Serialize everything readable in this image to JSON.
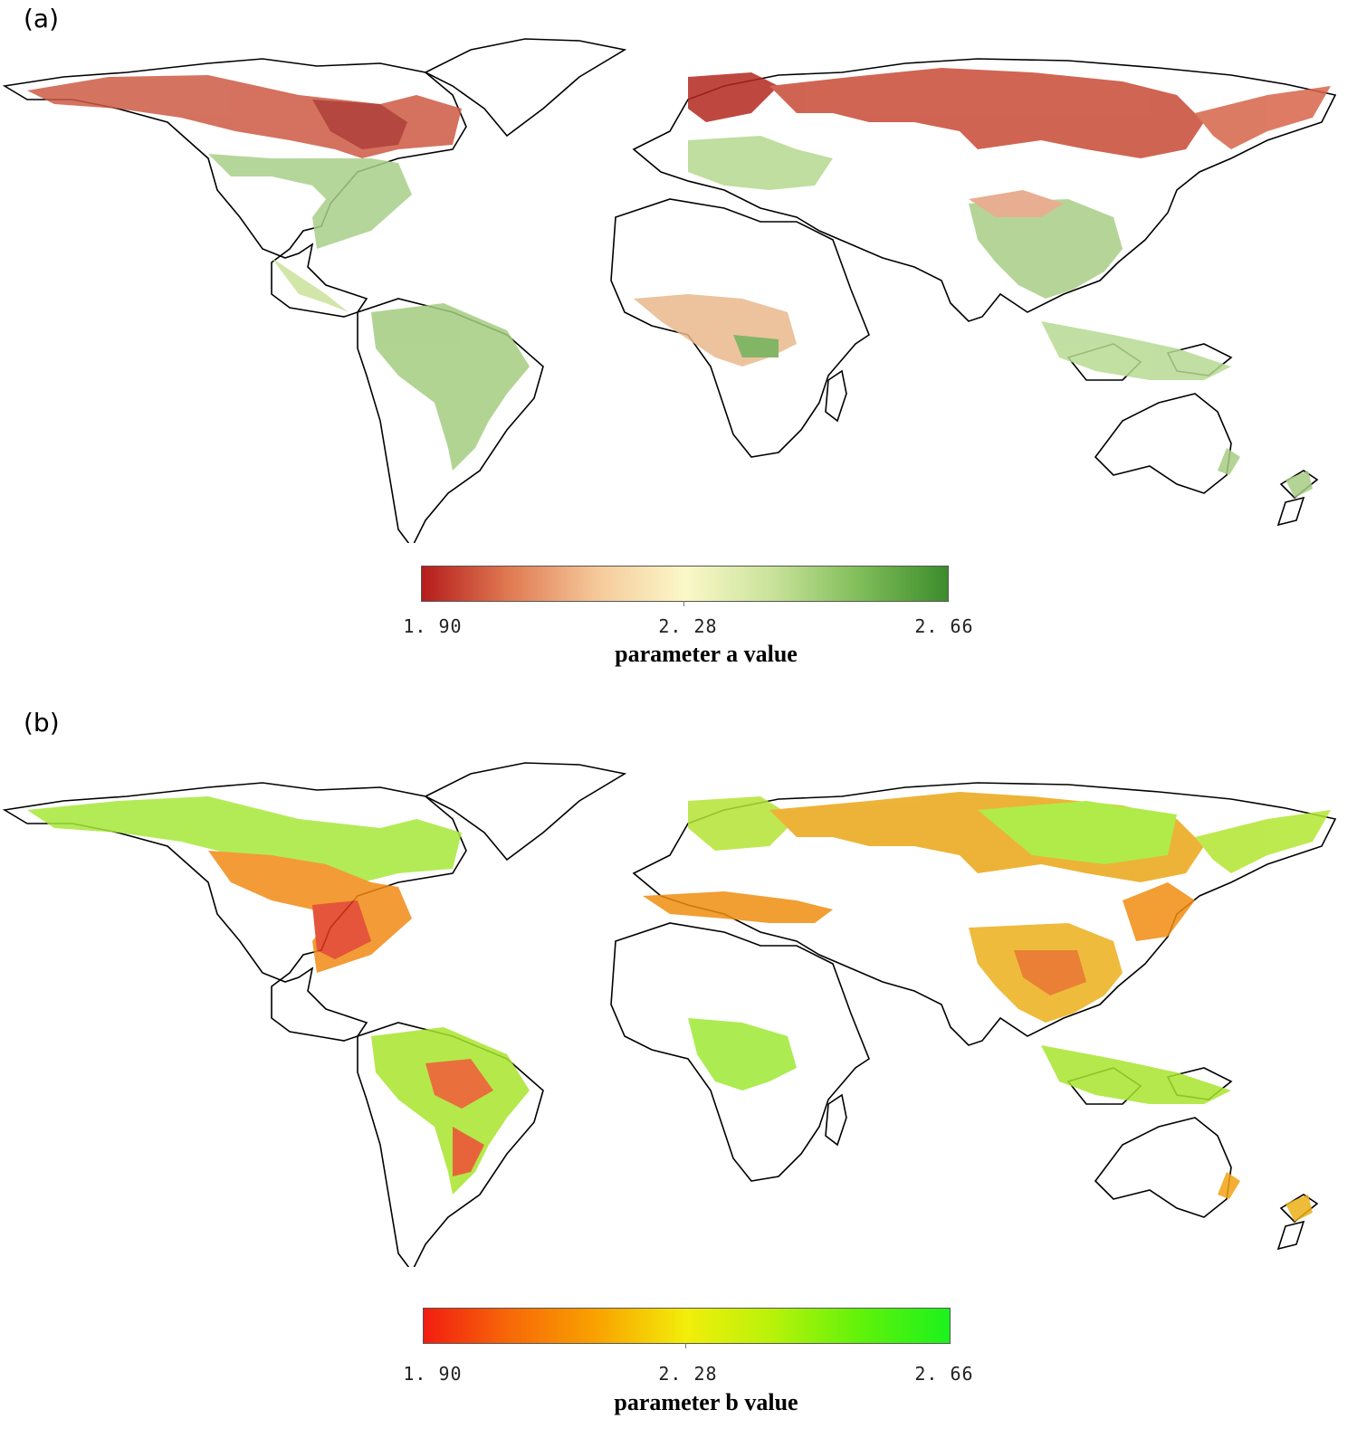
{
  "panels": [
    {
      "id": "a",
      "label": "(a)",
      "colorbar": {
        "ticks": [
          "1. 90",
          "2. 28",
          "2. 66"
        ],
        "title": "parameter a value",
        "colors": [
          "#b51c1c",
          "#e07a52",
          "#f5c99a",
          "#fbf8c8",
          "#c9e29a",
          "#7fbd58",
          "#3c8c2c"
        ]
      }
    },
    {
      "id": "b",
      "label": "(b)",
      "colorbar": {
        "ticks": [
          "1. 90",
          "2. 28",
          "2. 66"
        ],
        "title": "parameter b value",
        "colors": [
          "#f21d10",
          "#f76a08",
          "#f9a400",
          "#f2ee0a",
          "#b6f20a",
          "#5ff20a",
          "#1cf21c"
        ]
      }
    }
  ]
}
